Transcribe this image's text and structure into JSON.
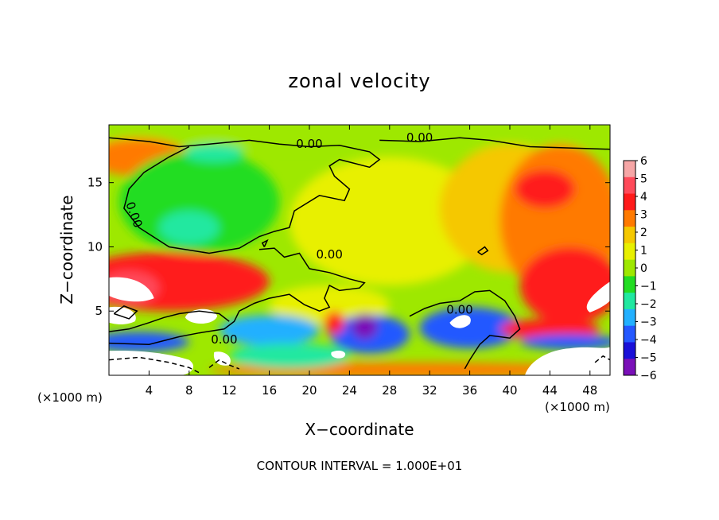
{
  "chart_data": {
    "type": "heatmap",
    "title": "zonal velocity",
    "xlabel": "X−coordinate",
    "ylabel": "Z−coordinate",
    "x_unit_left": "(×1000 m)",
    "x_unit_right": "(×1000 m)",
    "xlim": [
      0,
      50
    ],
    "ylim": [
      0,
      19.5
    ],
    "xticks": [
      4,
      8,
      12,
      16,
      20,
      24,
      28,
      32,
      36,
      40,
      44,
      48
    ],
    "yticks": [
      5,
      10,
      15
    ],
    "colorbar": {
      "levels": [
        6,
        5,
        4,
        3,
        2,
        1,
        0,
        -1,
        -2,
        -3,
        -4,
        -5,
        -6
      ],
      "labels": [
        "6",
        "5",
        "4",
        "3",
        "2",
        "1",
        "0",
        "−1",
        "−2",
        "−3",
        "−4",
        "−5",
        "−6"
      ],
      "colors": [
        "#f6a6a6",
        "#ff4a5a",
        "#ff1a1a",
        "#ff7a00",
        "#f5c800",
        "#e8f000",
        "#9ee800",
        "#22dd22",
        "#20e8a0",
        "#22b0ff",
        "#2458ff",
        "#1a10d8",
        "#7a10b8"
      ]
    },
    "contour_labels": [
      "0.00",
      "0.00",
      "0.00",
      "0.00",
      "0.00",
      "0.00"
    ],
    "footer": "CONTOUR INTERVAL = 1.000E+01"
  }
}
